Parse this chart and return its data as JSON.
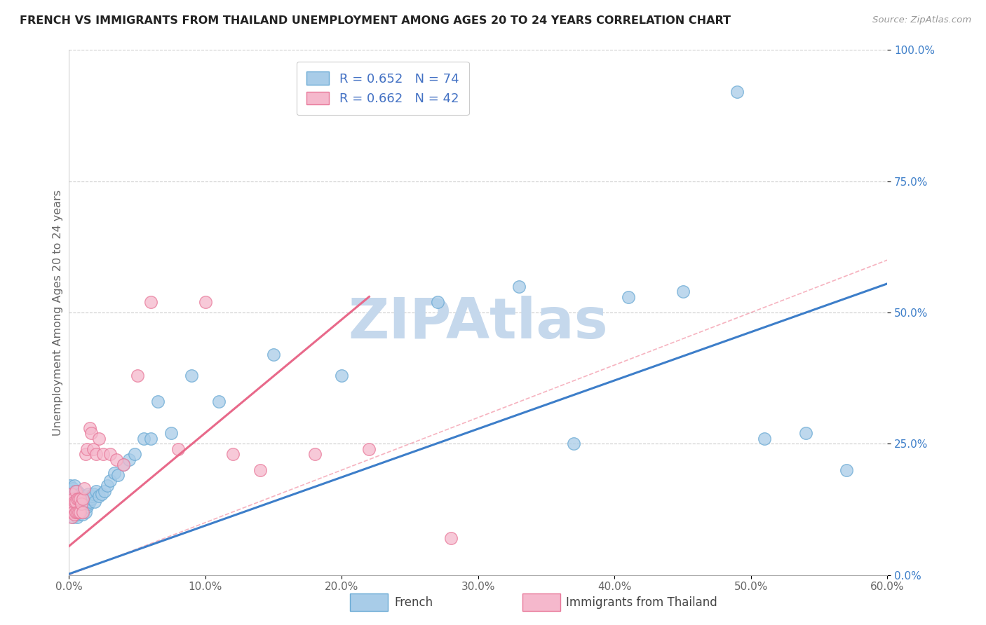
{
  "title": "FRENCH VS IMMIGRANTS FROM THAILAND UNEMPLOYMENT AMONG AGES 20 TO 24 YEARS CORRELATION CHART",
  "source": "Source: ZipAtlas.com",
  "ylabel": "Unemployment Among Ages 20 to 24 years",
  "xlabel_french": "French",
  "xlabel_thailand": "Immigrants from Thailand",
  "xlim": [
    0.0,
    0.6
  ],
  "ylim": [
    0.0,
    1.0
  ],
  "ytick_labels": [
    "0.0%",
    "25.0%",
    "50.0%",
    "75.0%",
    "100.0%"
  ],
  "xtick_labels": [
    "0.0%",
    "",
    "10.0%",
    "",
    "20.0%",
    "",
    "30.0%",
    "",
    "40.0%",
    "",
    "50.0%",
    "",
    "60.0%"
  ],
  "french_R": "0.652",
  "french_N": "74",
  "thailand_R": "0.662",
  "thailand_N": "42",
  "blue_scatter_color": "#a8cce8",
  "blue_scatter_edge": "#6aaad4",
  "pink_scatter_color": "#f5b8cc",
  "pink_scatter_edge": "#e8799a",
  "blue_line_color": "#3d7ec9",
  "pink_line_color": "#e8698a",
  "diag_line_color": "#f4a0b0",
  "legend_text_color": "#4472c4",
  "legend_N_color": "#4472c4",
  "watermark_color": "#c5d8ec",
  "french_x": [
    0.001,
    0.001,
    0.001,
    0.002,
    0.002,
    0.002,
    0.003,
    0.003,
    0.003,
    0.003,
    0.004,
    0.004,
    0.004,
    0.004,
    0.005,
    0.005,
    0.005,
    0.005,
    0.006,
    0.006,
    0.006,
    0.006,
    0.007,
    0.007,
    0.007,
    0.008,
    0.008,
    0.008,
    0.009,
    0.009,
    0.01,
    0.01,
    0.01,
    0.011,
    0.011,
    0.012,
    0.012,
    0.013,
    0.013,
    0.014,
    0.014,
    0.015,
    0.016,
    0.017,
    0.018,
    0.019,
    0.02,
    0.022,
    0.024,
    0.026,
    0.028,
    0.03,
    0.033,
    0.036,
    0.04,
    0.044,
    0.048,
    0.055,
    0.06,
    0.065,
    0.075,
    0.09,
    0.11,
    0.15,
    0.2,
    0.27,
    0.33,
    0.37,
    0.41,
    0.45,
    0.49,
    0.51,
    0.54,
    0.57
  ],
  "french_y": [
    0.13,
    0.15,
    0.17,
    0.12,
    0.14,
    0.16,
    0.11,
    0.13,
    0.15,
    0.165,
    0.12,
    0.14,
    0.155,
    0.17,
    0.115,
    0.13,
    0.145,
    0.16,
    0.11,
    0.125,
    0.14,
    0.16,
    0.115,
    0.13,
    0.15,
    0.12,
    0.14,
    0.155,
    0.125,
    0.145,
    0.115,
    0.135,
    0.15,
    0.125,
    0.145,
    0.12,
    0.14,
    0.13,
    0.15,
    0.135,
    0.155,
    0.14,
    0.145,
    0.15,
    0.155,
    0.14,
    0.16,
    0.15,
    0.155,
    0.16,
    0.17,
    0.18,
    0.195,
    0.19,
    0.21,
    0.22,
    0.23,
    0.26,
    0.26,
    0.33,
    0.27,
    0.38,
    0.33,
    0.42,
    0.38,
    0.52,
    0.55,
    0.25,
    0.53,
    0.54,
    0.92,
    0.26,
    0.27,
    0.2
  ],
  "thailand_x": [
    0.001,
    0.001,
    0.002,
    0.002,
    0.002,
    0.003,
    0.003,
    0.004,
    0.004,
    0.005,
    0.005,
    0.005,
    0.006,
    0.006,
    0.007,
    0.007,
    0.008,
    0.008,
    0.009,
    0.01,
    0.01,
    0.011,
    0.012,
    0.013,
    0.015,
    0.016,
    0.018,
    0.02,
    0.022,
    0.025,
    0.03,
    0.035,
    0.04,
    0.05,
    0.06,
    0.08,
    0.1,
    0.12,
    0.14,
    0.18,
    0.22,
    0.28
  ],
  "thailand_y": [
    0.12,
    0.14,
    0.11,
    0.13,
    0.155,
    0.12,
    0.145,
    0.115,
    0.14,
    0.12,
    0.14,
    0.16,
    0.12,
    0.145,
    0.12,
    0.145,
    0.12,
    0.145,
    0.135,
    0.12,
    0.145,
    0.165,
    0.23,
    0.24,
    0.28,
    0.27,
    0.24,
    0.23,
    0.26,
    0.23,
    0.23,
    0.22,
    0.21,
    0.38,
    0.52,
    0.24,
    0.52,
    0.23,
    0.2,
    0.23,
    0.24,
    0.07
  ],
  "blue_line_x0": 0.0,
  "blue_line_y0": 0.002,
  "blue_line_x1": 0.6,
  "blue_line_y1": 0.555,
  "pink_line_x0": 0.0,
  "pink_line_y0": 0.055,
  "pink_line_x1": 0.22,
  "pink_line_y1": 0.53
}
